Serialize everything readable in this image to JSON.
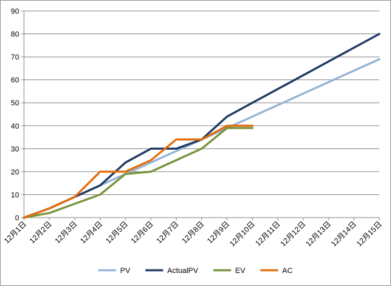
{
  "chart_data": {
    "type": "line",
    "categories": [
      "12月1日",
      "12月2日",
      "12月3日",
      "12月4日",
      "12月5日",
      "12月6日",
      "12月7日",
      "12月8日",
      "12月9日",
      "12月10日",
      "12月11日",
      "12月12日",
      "12月13日",
      "12月14日",
      "12月15日"
    ],
    "ylim": [
      0,
      90
    ],
    "yticks": [
      "0",
      "10",
      "20",
      "30",
      "40",
      "50",
      "60",
      "70",
      "80",
      "90"
    ],
    "grid": true,
    "legend_position": "bottom",
    "series": [
      {
        "name": "PV",
        "color": "#95b3d7",
        "values": [
          0,
          4,
          9,
          14,
          19,
          24,
          29,
          34,
          39,
          44,
          49,
          54,
          59,
          64,
          69
        ]
      },
      {
        "name": "ActualPV",
        "color": "#1f3864",
        "values": [
          0,
          4,
          9,
          14,
          24,
          30,
          30,
          34,
          44,
          50,
          56,
          62,
          68,
          74,
          80
        ]
      },
      {
        "name": "EV",
        "color": "#77933c",
        "values": [
          0,
          2,
          6,
          10,
          19,
          20,
          25,
          30,
          39,
          39,
          null,
          null,
          null,
          null,
          null
        ]
      },
      {
        "name": "AC",
        "color": "#e46c0a",
        "values": [
          0,
          4,
          9,
          20,
          20,
          25,
          34,
          34,
          40,
          40,
          null,
          null,
          null,
          null,
          null
        ]
      }
    ]
  }
}
